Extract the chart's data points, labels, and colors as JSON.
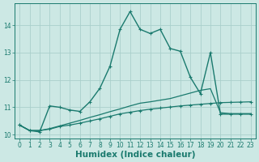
{
  "xlabel": "Humidex (Indice chaleur)",
  "x_values": [
    0,
    1,
    2,
    3,
    4,
    5,
    6,
    7,
    8,
    9,
    10,
    11,
    12,
    13,
    14,
    15,
    16,
    17,
    18,
    19,
    20,
    21,
    22,
    23
  ],
  "series": [
    {
      "y": [
        10.35,
        10.15,
        10.1,
        11.05,
        11.0,
        10.9,
        10.85,
        11.2,
        11.7,
        12.5,
        13.85,
        14.5,
        13.85,
        13.7,
        13.85,
        13.15,
        13.05,
        12.1,
        11.5,
        13.0,
        10.75,
        10.75,
        10.75,
        10.75
      ],
      "color": "#1a7a6e",
      "linewidth": 1.0,
      "marker": "+",
      "markersize": 3.5,
      "linestyle": "-"
    },
    {
      "y": [
        10.35,
        10.15,
        10.15,
        10.2,
        10.3,
        10.35,
        10.42,
        10.5,
        10.58,
        10.67,
        10.76,
        10.82,
        10.88,
        10.93,
        10.97,
        11.01,
        11.05,
        11.08,
        11.11,
        11.14,
        11.17,
        11.18,
        11.19,
        11.2
      ],
      "color": "#1a7a6e",
      "linewidth": 0.9,
      "marker": "+",
      "markersize": 2.5,
      "linestyle": "-"
    },
    {
      "y": [
        10.35,
        10.15,
        10.15,
        10.22,
        10.32,
        10.42,
        10.52,
        10.63,
        10.73,
        10.84,
        10.94,
        11.05,
        11.15,
        11.2,
        11.26,
        11.32,
        11.42,
        11.52,
        11.62,
        11.68,
        10.8,
        10.77,
        10.77,
        10.77
      ],
      "color": "#1a7a6e",
      "linewidth": 0.9,
      "marker": null,
      "markersize": 0,
      "linestyle": "-"
    }
  ],
  "ylim": [
    9.85,
    14.8
  ],
  "xlim": [
    -0.5,
    23.5
  ],
  "yticks": [
    10,
    11,
    12,
    13,
    14
  ],
  "xticks": [
    0,
    1,
    2,
    3,
    4,
    5,
    6,
    7,
    8,
    9,
    10,
    11,
    12,
    13,
    14,
    15,
    16,
    17,
    18,
    19,
    20,
    21,
    22,
    23
  ],
  "bg_color": "#cce8e4",
  "grid_color": "#aacfcb",
  "axis_color": "#1a7a6e",
  "text_color": "#1a7a6e",
  "tick_fontsize": 5.5,
  "label_fontsize": 7.5
}
